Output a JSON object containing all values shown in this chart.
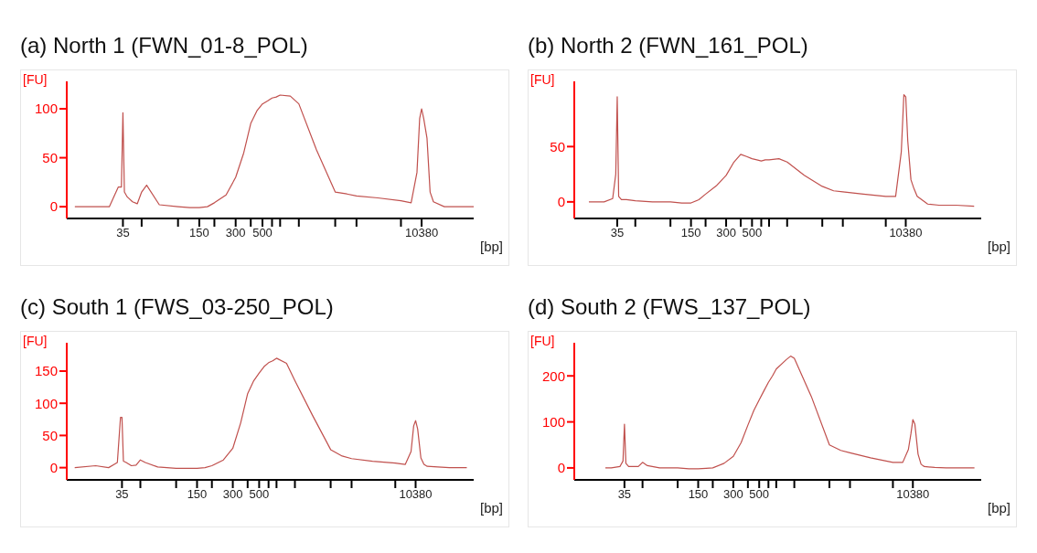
{
  "chart_data": [
    {
      "type": "line",
      "title": "(a) North 1 (FWN_01-8_POL)",
      "xlabel": "[bp]",
      "ylabel": "[FU]",
      "color": "#c0504d",
      "x": [
        14,
        20,
        27,
        32,
        34,
        35,
        36,
        38,
        42,
        46,
        50,
        55,
        70,
        100,
        125,
        150,
        175,
        200,
        250,
        300,
        350,
        400,
        450,
        500,
        550,
        600,
        650,
        700,
        850,
        1000,
        1400,
        2000,
        2500,
        3000,
        4500,
        7000,
        8500,
        9500,
        10000,
        10380,
        10800,
        11500,
        12200,
        13000,
        16000,
        20000,
        28000
      ],
      "values": [
        0,
        0,
        0,
        20,
        20,
        96,
        15,
        10,
        5,
        3,
        15,
        22,
        2,
        0,
        -1,
        -1,
        0,
        4,
        12,
        30,
        55,
        85,
        98,
        105,
        108,
        111,
        112,
        114,
        113,
        105,
        58,
        15,
        13,
        11,
        9,
        6,
        4,
        35,
        90,
        100,
        90,
        70,
        15,
        5,
        0,
        0,
        0
      ],
      "xlim": [
        12,
        28000
      ],
      "log": "x",
      "xticks": [
        {
          "value": 35,
          "label": "35"
        },
        {
          "value": 50,
          "label": null
        },
        {
          "value": 100,
          "label": null
        },
        {
          "value": 150,
          "label": "150"
        },
        {
          "value": 200,
          "label": null
        },
        {
          "value": 300,
          "label": "300"
        },
        {
          "value": 400,
          "label": null
        },
        {
          "value": 500,
          "label": "500"
        },
        {
          "value": 600,
          "label": null
        },
        {
          "value": 700,
          "label": null
        },
        {
          "value": 1000,
          "label": null
        },
        {
          "value": 2000,
          "label": null
        },
        {
          "value": 3000,
          "label": null
        },
        {
          "value": 7000,
          "label": null
        },
        {
          "value": 10380,
          "label": "10380"
        }
      ],
      "ylim": [
        -12,
        128
      ],
      "yticks": [
        0,
        50,
        100
      ]
    },
    {
      "type": "line",
      "title": "(b) North 2 (FWN_161_POL)",
      "xlabel": "[bp]",
      "ylabel": "[FU]",
      "color": "#c0504d",
      "x": [
        20,
        27,
        32,
        34,
        35,
        36,
        38,
        42,
        50,
        70,
        100,
        125,
        150,
        175,
        200,
        250,
        300,
        350,
        400,
        450,
        500,
        550,
        600,
        650,
        700,
        850,
        1000,
        1400,
        2000,
        2500,
        3000,
        4500,
        7000,
        8500,
        9500,
        10000,
        10380,
        10800,
        11500,
        12200,
        13000,
        16000,
        20000,
        28000,
        40000
      ],
      "values": [
        0,
        0,
        3,
        25,
        95,
        5,
        2,
        2,
        1,
        0,
        0,
        -1,
        -1,
        2,
        7,
        15,
        24,
        36,
        43,
        41,
        39,
        38,
        37,
        38,
        38,
        39,
        36,
        24,
        14,
        10,
        9,
        7,
        5,
        5,
        45,
        97,
        95,
        55,
        20,
        12,
        5,
        -2,
        -3,
        -3,
        -4
      ],
      "xlim": [
        15,
        46000
      ],
      "log": "x",
      "xticks": [
        {
          "value": 35,
          "label": "35"
        },
        {
          "value": 50,
          "label": null
        },
        {
          "value": 100,
          "label": null
        },
        {
          "value": 150,
          "label": "150"
        },
        {
          "value": 200,
          "label": null
        },
        {
          "value": 300,
          "label": "300"
        },
        {
          "value": 400,
          "label": null
        },
        {
          "value": 500,
          "label": "500"
        },
        {
          "value": 600,
          "label": null
        },
        {
          "value": 700,
          "label": null
        },
        {
          "value": 1000,
          "label": null
        },
        {
          "value": 2000,
          "label": null
        },
        {
          "value": 3000,
          "label": null
        },
        {
          "value": 7000,
          "label": null
        },
        {
          "value": 10380,
          "label": "10380"
        }
      ],
      "ylim": [
        -15,
        109
      ],
      "yticks": [
        0,
        50
      ]
    },
    {
      "type": "line",
      "title": "(c) South 1 (FWS_03-250_POL)",
      "xlabel": "[bp]",
      "ylabel": "[FU]",
      "color": "#c0504d",
      "x": [
        14,
        21,
        27,
        32,
        34,
        35,
        36,
        38,
        42,
        46,
        50,
        55,
        70,
        100,
        125,
        150,
        175,
        200,
        250,
        300,
        350,
        400,
        450,
        500,
        550,
        600,
        650,
        700,
        850,
        1000,
        1400,
        2000,
        2500,
        3000,
        4500,
        7000,
        8500,
        9500,
        10000,
        10380,
        10800,
        11500,
        12200,
        13000,
        16000,
        20000,
        28000
      ],
      "values": [
        0,
        3,
        0,
        8,
        78,
        78,
        10,
        8,
        3,
        4,
        12,
        8,
        1,
        -1,
        -1,
        -1,
        0,
        3,
        12,
        30,
        70,
        115,
        135,
        147,
        157,
        163,
        166,
        170,
        162,
        135,
        82,
        28,
        18,
        14,
        10,
        7,
        5,
        25,
        65,
        73,
        60,
        15,
        5,
        2,
        1,
        0,
        0
      ],
      "xlim": [
        12,
        32000
      ],
      "log": "x",
      "xticks": [
        {
          "value": 35,
          "label": "35"
        },
        {
          "value": 50,
          "label": null
        },
        {
          "value": 100,
          "label": null
        },
        {
          "value": 150,
          "label": "150"
        },
        {
          "value": 200,
          "label": null
        },
        {
          "value": 300,
          "label": "300"
        },
        {
          "value": 400,
          "label": null
        },
        {
          "value": 500,
          "label": "500"
        },
        {
          "value": 600,
          "label": null
        },
        {
          "value": 700,
          "label": null
        },
        {
          "value": 1000,
          "label": null
        },
        {
          "value": 2000,
          "label": null
        },
        {
          "value": 3000,
          "label": null
        },
        {
          "value": 7000,
          "label": null
        },
        {
          "value": 10380,
          "label": "10380"
        }
      ],
      "ylim": [
        -19,
        194
      ],
      "yticks": [
        0,
        50,
        100,
        150
      ]
    },
    {
      "type": "line",
      "title": "(d) South 2 (FWS_137_POL)",
      "xlabel": "[bp]",
      "ylabel": "[FU]",
      "color": "#c0504d",
      "x": [
        24,
        27,
        32,
        34,
        35,
        36,
        38,
        46,
        50,
        55,
        70,
        100,
        125,
        150,
        175,
        200,
        250,
        300,
        350,
        400,
        450,
        500,
        550,
        600,
        650,
        700,
        850,
        930,
        1000,
        1400,
        2000,
        2500,
        3000,
        4500,
        7000,
        8500,
        9500,
        10000,
        10380,
        10800,
        11500,
        12200,
        13000,
        16000,
        20000,
        28000,
        35000
      ],
      "values": [
        0,
        0,
        3,
        15,
        95,
        10,
        3,
        3,
        12,
        5,
        0,
        0,
        -2,
        -2,
        -1,
        0,
        10,
        25,
        55,
        93,
        125,
        148,
        168,
        186,
        200,
        215,
        235,
        243,
        238,
        155,
        50,
        38,
        33,
        22,
        12,
        12,
        40,
        75,
        105,
        95,
        30,
        8,
        3,
        1,
        0,
        0,
        0
      ],
      "xlim": [
        13,
        40000
      ],
      "log": "x",
      "xticks": [
        {
          "value": 35,
          "label": "35"
        },
        {
          "value": 50,
          "label": null
        },
        {
          "value": 100,
          "label": null
        },
        {
          "value": 150,
          "label": "150"
        },
        {
          "value": 200,
          "label": null
        },
        {
          "value": 300,
          "label": "300"
        },
        {
          "value": 400,
          "label": null
        },
        {
          "value": 500,
          "label": "500"
        },
        {
          "value": 600,
          "label": null
        },
        {
          "value": 700,
          "label": null
        },
        {
          "value": 1000,
          "label": null
        },
        {
          "value": 2000,
          "label": null
        },
        {
          "value": 3000,
          "label": null
        },
        {
          "value": 7000,
          "label": null
        },
        {
          "value": 10380,
          "label": "10380"
        }
      ],
      "ylim": [
        -26,
        272
      ],
      "yticks": [
        0,
        100,
        200
      ]
    }
  ]
}
